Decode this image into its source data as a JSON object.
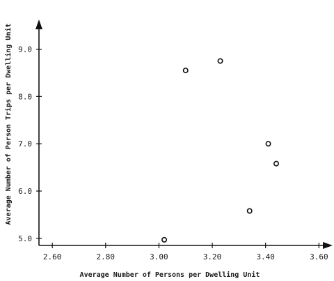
{
  "chart_data": {
    "type": "scatter",
    "title": "",
    "xlabel": "Average Number of Persons per Dwelling Unit",
    "ylabel": "Average Number of Person Trips per Dwelling Unit",
    "xlim": [
      2.55,
      3.62
    ],
    "ylim": [
      4.85,
      9.45
    ],
    "x_ticks": [
      2.6,
      2.8,
      3.0,
      3.2,
      3.4,
      3.6
    ],
    "x_tick_labels": [
      "2.60",
      "2.80",
      "3.00",
      "3.20",
      "3.40",
      "3.60"
    ],
    "y_ticks": [
      5.0,
      6.0,
      7.0,
      8.0,
      9.0
    ],
    "y_tick_labels": [
      "5.0",
      "6.0",
      "7.0",
      "8.0",
      "9.0"
    ],
    "grid": false,
    "series": [
      {
        "points": [
          {
            "x": 3.02,
            "y": 4.97
          },
          {
            "x": 3.1,
            "y": 8.55
          },
          {
            "x": 3.23,
            "y": 8.75
          },
          {
            "x": 3.34,
            "y": 5.58
          },
          {
            "x": 3.41,
            "y": 7.0
          },
          {
            "x": 3.44,
            "y": 6.58
          }
        ]
      }
    ]
  }
}
